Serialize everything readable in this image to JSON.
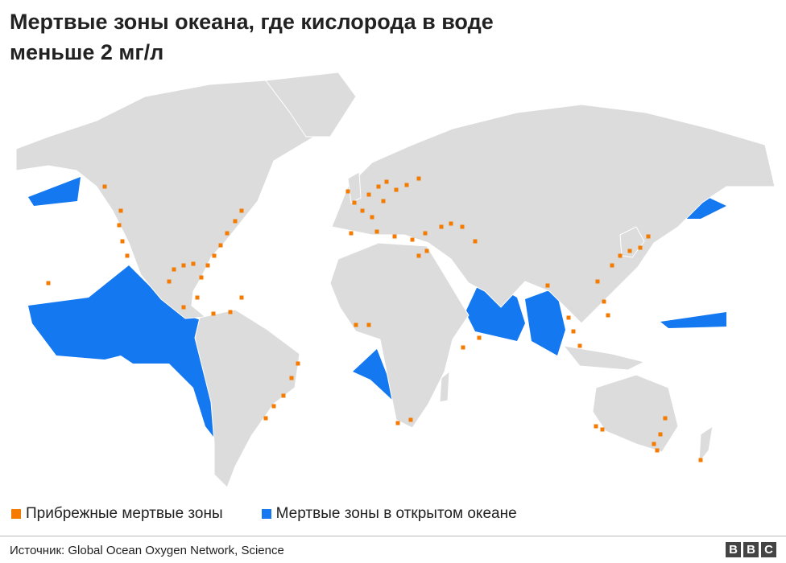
{
  "title": [
    "Мертвые зоны океана, где кислорода в воде",
    "меньше 2 мг/л"
  ],
  "legend": [
    {
      "label": "Прибрежные мертвые зоны",
      "color": "#f47a00"
    },
    {
      "label": "Мертвые зоны в открытом океане",
      "color": "#1478f0"
    }
  ],
  "source": "Источник: Global Ocean Oxygen Network, Science",
  "logo": [
    "B",
    "B",
    "C"
  ]
}
